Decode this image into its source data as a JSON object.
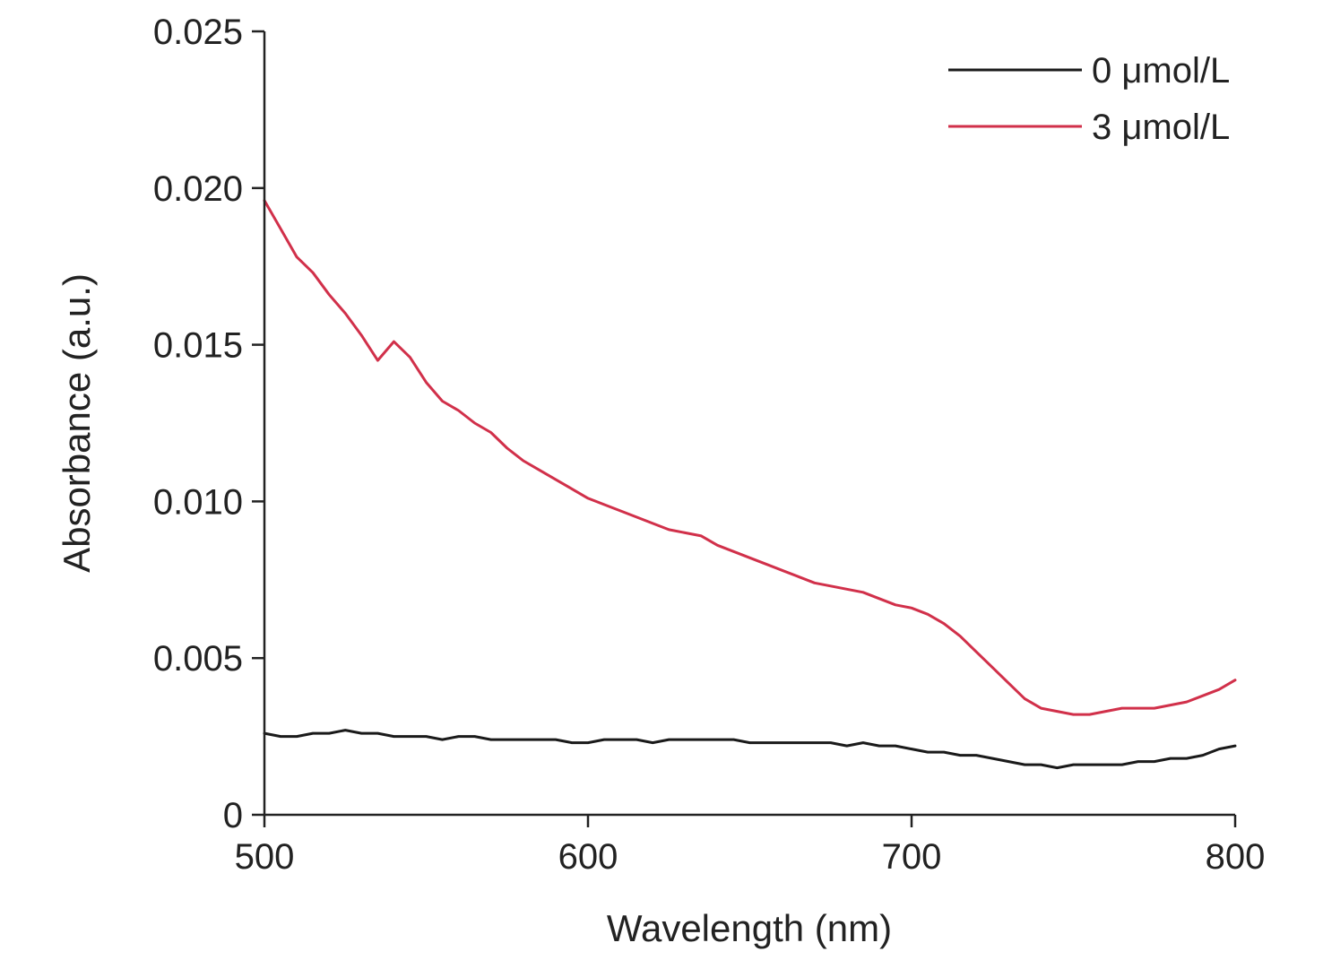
{
  "chart_data": {
    "type": "line",
    "title": "",
    "xlabel": "Wavelength (nm)",
    "ylabel": "Absorbance (a.u.)",
    "xlim": [
      500,
      800
    ],
    "ylim": [
      0,
      0.025
    ],
    "x_ticks": [
      500,
      600,
      700,
      800
    ],
    "x_tick_labels": [
      "500",
      "600",
      "700",
      "800"
    ],
    "y_ticks": [
      0,
      0.005,
      0.01,
      0.015,
      0.02,
      0.025
    ],
    "y_tick_labels": [
      "0",
      "0.005",
      "0.010",
      "0.015",
      "0.020",
      "0.025"
    ],
    "grid": false,
    "legend_position": "top-right",
    "series": [
      {
        "name": "0 μmol/L",
        "color": "#1a1a1a",
        "x": [
          500,
          505,
          510,
          515,
          520,
          525,
          530,
          535,
          540,
          545,
          550,
          555,
          560,
          565,
          570,
          575,
          580,
          585,
          590,
          595,
          600,
          605,
          610,
          615,
          620,
          625,
          630,
          635,
          640,
          645,
          650,
          655,
          660,
          665,
          670,
          675,
          680,
          685,
          690,
          695,
          700,
          705,
          710,
          715,
          720,
          725,
          730,
          735,
          740,
          745,
          750,
          755,
          760,
          765,
          770,
          775,
          780,
          785,
          790,
          795,
          800
        ],
        "y": [
          0.0026,
          0.0025,
          0.0025,
          0.0026,
          0.0026,
          0.0027,
          0.0026,
          0.0026,
          0.0025,
          0.0025,
          0.0025,
          0.0024,
          0.0025,
          0.0025,
          0.0024,
          0.0024,
          0.0024,
          0.0024,
          0.0024,
          0.0023,
          0.0023,
          0.0024,
          0.0024,
          0.0024,
          0.0023,
          0.0024,
          0.0024,
          0.0024,
          0.0024,
          0.0024,
          0.0023,
          0.0023,
          0.0023,
          0.0023,
          0.0023,
          0.0023,
          0.0022,
          0.0023,
          0.0022,
          0.0022,
          0.0021,
          0.002,
          0.002,
          0.0019,
          0.0019,
          0.0018,
          0.0017,
          0.0016,
          0.0016,
          0.0015,
          0.0016,
          0.0016,
          0.0016,
          0.0016,
          0.0017,
          0.0017,
          0.0018,
          0.0018,
          0.0019,
          0.0021,
          0.0022
        ]
      },
      {
        "name": "3 μmol/L",
        "color": "#d1304a",
        "x": [
          500,
          505,
          510,
          515,
          520,
          525,
          530,
          535,
          540,
          545,
          550,
          555,
          560,
          565,
          570,
          575,
          580,
          585,
          590,
          595,
          600,
          605,
          610,
          615,
          620,
          625,
          630,
          635,
          640,
          645,
          650,
          655,
          660,
          665,
          670,
          675,
          680,
          685,
          690,
          695,
          700,
          705,
          710,
          715,
          720,
          725,
          730,
          735,
          740,
          745,
          750,
          755,
          760,
          765,
          770,
          775,
          780,
          785,
          790,
          795,
          800
        ],
        "y": [
          0.0196,
          0.0187,
          0.0178,
          0.0173,
          0.0166,
          0.016,
          0.0153,
          0.0145,
          0.0151,
          0.0146,
          0.0138,
          0.0132,
          0.0129,
          0.0125,
          0.0122,
          0.0117,
          0.0113,
          0.011,
          0.0107,
          0.0104,
          0.0101,
          0.0099,
          0.0097,
          0.0095,
          0.0093,
          0.0091,
          0.009,
          0.0089,
          0.0086,
          0.0084,
          0.0082,
          0.008,
          0.0078,
          0.0076,
          0.0074,
          0.0073,
          0.0072,
          0.0071,
          0.0069,
          0.0067,
          0.0066,
          0.0064,
          0.0061,
          0.0057,
          0.0052,
          0.0047,
          0.0042,
          0.0037,
          0.0034,
          0.0033,
          0.0032,
          0.0032,
          0.0033,
          0.0034,
          0.0034,
          0.0034,
          0.0035,
          0.0036,
          0.0038,
          0.004,
          0.0043
        ]
      }
    ]
  }
}
